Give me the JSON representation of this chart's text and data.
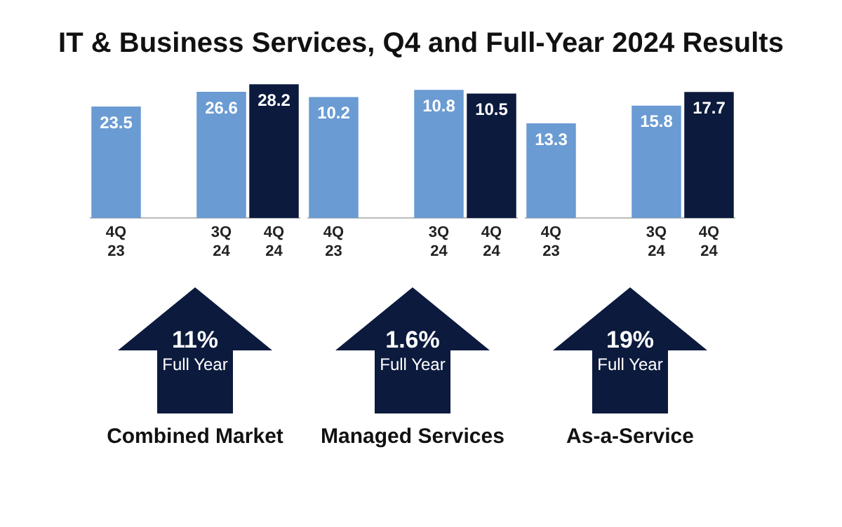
{
  "chart_data": [
    {
      "type": "bar",
      "title": "IT & Business Services, Q4 and Full-Year 2024 Results",
      "categories": [
        "4Q 23",
        null,
        "3Q 24",
        "4Q 24"
      ],
      "values": [
        23.5,
        null,
        26.6,
        28.2
      ],
      "colors": [
        "#6a9bd3",
        "#6a9bd3",
        "#6a9bd3",
        "#0b1a3d"
      ],
      "data_labels": true,
      "tick_labels": "x",
      "annotations": [
        "11%",
        "Full Year"
      ],
      "xlabel": "Combined Market"
    },
    {
      "type": "bar",
      "categories": [
        "4Q 23",
        null,
        "3Q 24",
        "4Q 24"
      ],
      "values": [
        10.2,
        null,
        10.8,
        10.5
      ],
      "colors": [
        "#6a9bd3",
        "#6a9bd3",
        "#6a9bd3",
        "#0b1a3d"
      ],
      "data_labels": true,
      "tick_labels": "x",
      "annotations": [
        "1.6%",
        "Full Year"
      ],
      "xlabel": "Managed Services"
    },
    {
      "type": "bar",
      "categories": [
        "4Q 23",
        null,
        "3Q 24",
        "4Q 24"
      ],
      "values": [
        13.3,
        null,
        15.8,
        17.7
      ],
      "colors": [
        "#6a9bd3",
        "#6a9bd3",
        "#6a9bd3",
        "#0b1a3d"
      ],
      "data_labels": true,
      "tick_labels": "x",
      "annotations": [
        "19%",
        "Full Year"
      ],
      "xlabel": "As-a-Service"
    }
  ]
}
